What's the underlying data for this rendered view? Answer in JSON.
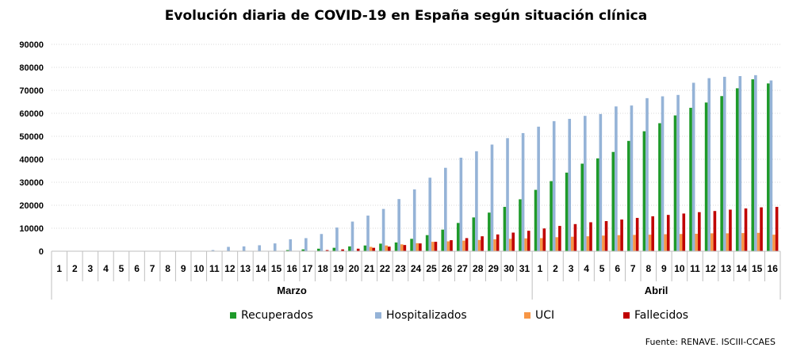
{
  "chart_data": {
    "type": "bar",
    "title": "Evolución diaria de COVID-19 en España según situación clínica",
    "ylim": [
      0,
      90000
    ],
    "yticks": [
      "0",
      "10000",
      "20000",
      "30000",
      "40000",
      "50000",
      "60000",
      "70000",
      "80000",
      "90000"
    ],
    "grid": true,
    "legend_position": "bottom",
    "categories": [
      "1",
      "2",
      "3",
      "4",
      "5",
      "6",
      "7",
      "8",
      "9",
      "10",
      "11",
      "12",
      "13",
      "14",
      "15",
      "16",
      "17",
      "18",
      "19",
      "20",
      "21",
      "22",
      "23",
      "24",
      "25",
      "26",
      "27",
      "28",
      "29",
      "30",
      "31",
      "1",
      "2",
      "3",
      "4",
      "5",
      "6",
      "7",
      "8",
      "9",
      "10",
      "11",
      "12",
      "13",
      "14",
      "15",
      "16"
    ],
    "groups": [
      {
        "label": "Marzo",
        "count": 31
      },
      {
        "label": "Abril",
        "count": 16
      }
    ],
    "series": [
      {
        "name": "Recuperados",
        "color": "#1e9a2a",
        "values": [
          0,
          0,
          0,
          0,
          0,
          0,
          0,
          0,
          0,
          0,
          0,
          0,
          0,
          0,
          0,
          500,
          800,
          1100,
          1500,
          2100,
          2500,
          3300,
          3800,
          5400,
          7000,
          9400,
          12300,
          14700,
          16800,
          19300,
          22600,
          26700,
          30500,
          34200,
          38100,
          40400,
          43200,
          48000,
          52200,
          55700,
          59100,
          62400,
          64700,
          67500,
          70900,
          74800,
          73000
        ]
      },
      {
        "name": "Hospitalizados",
        "color": "#95b3d7",
        "values": [
          0,
          0,
          0,
          0,
          0,
          0,
          0,
          0,
          0,
          100,
          500,
          1900,
          2100,
          2600,
          3400,
          5200,
          5700,
          7500,
          10300,
          12900,
          15500,
          18400,
          22700,
          26900,
          32000,
          36300,
          40700,
          43500,
          46400,
          49200,
          51400,
          54200,
          56600,
          57600,
          58900,
          59700,
          63000,
          63400,
          66600,
          67400,
          68000,
          73300,
          75300,
          75900,
          76200,
          76600,
          74300
        ]
      },
      {
        "name": "UCI",
        "color": "#f79646",
        "values": [
          0,
          0,
          0,
          0,
          0,
          0,
          0,
          0,
          0,
          0,
          0,
          0,
          0,
          0,
          0,
          0,
          0,
          0,
          0,
          0,
          1900,
          2500,
          3000,
          3500,
          4100,
          4300,
          4600,
          4900,
          5200,
          5400,
          5600,
          5700,
          6100,
          6300,
          6500,
          6800,
          7000,
          7100,
          7200,
          7400,
          7500,
          7600,
          7800,
          7800,
          7900,
          8000,
          7200
        ]
      },
      {
        "name": "Fallecidos",
        "color": "#c00000",
        "values": [
          0,
          0,
          0,
          0,
          0,
          0,
          0,
          0,
          0,
          0,
          0,
          0,
          0,
          0,
          0,
          0,
          0,
          500,
          800,
          1100,
          1500,
          2000,
          2700,
          3400,
          4100,
          4800,
          5700,
          6500,
          7300,
          8100,
          8900,
          9900,
          11000,
          11800,
          12600,
          13100,
          13800,
          14500,
          15200,
          15800,
          16400,
          17000,
          17500,
          18100,
          18600,
          19100,
          19300
        ]
      }
    ],
    "source": "Fuente: RENAVE. ISCIII-CCAES"
  }
}
